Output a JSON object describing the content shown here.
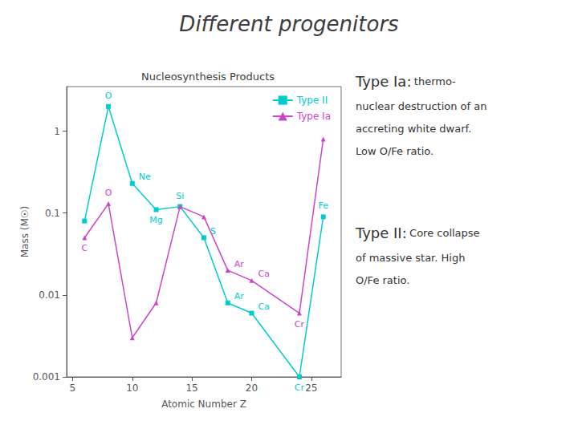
{
  "chart_data": {
    "type": "line",
    "title": "Different progenitors",
    "subtitle": "Nucleosynthesis Products",
    "x_label": "Atomic Number Z",
    "y_label": "Mass (M☉)",
    "log": "y",
    "grid": false,
    "legend": "upper right",
    "xlim": [
      4.5,
      27.5
    ],
    "xticks": [
      5,
      10,
      15,
      20,
      25
    ],
    "ylim": [
      0.001,
      3.5
    ],
    "yticks": [
      0.001,
      0.01,
      0.1,
      1
    ],
    "x": [
      6,
      8,
      10,
      12,
      14,
      16,
      18,
      20,
      24,
      26
    ],
    "series": [
      {
        "name": "Type II",
        "color": "#00cccc",
        "marker": "square",
        "values": [
          0.08,
          2.0,
          0.23,
          0.11,
          0.12,
          0.05,
          0.008,
          0.006,
          0.001,
          0.09
        ]
      },
      {
        "name": "Type Ia",
        "color": "#cc44cc",
        "marker": "triangle",
        "values": [
          0.05,
          0.13,
          0.003,
          0.008,
          0.12,
          0.09,
          0.02,
          0.015,
          0.006,
          0.8
        ]
      }
    ],
    "annotations": [
      {
        "text": "O",
        "series": "Type II",
        "x": 8,
        "y": 2.0
      },
      {
        "text": "Ne",
        "series": "Type II",
        "x": 10,
        "y": 0.23
      },
      {
        "text": "Mg",
        "series": "Type II",
        "x": 12,
        "y": 0.11
      },
      {
        "text": "Si",
        "series": "Type II",
        "x": 14,
        "y": 0.12
      },
      {
        "text": "S",
        "series": "Type II",
        "x": 16,
        "y": 0.05
      },
      {
        "text": "Ar",
        "series": "Type II",
        "x": 18,
        "y": 0.008
      },
      {
        "text": "Ca",
        "series": "Type II",
        "x": 20,
        "y": 0.006
      },
      {
        "text": "Cr",
        "series": "Type II",
        "x": 24,
        "y": 0.001
      },
      {
        "text": "Fe",
        "series": "Type II",
        "x": 26,
        "y": 0.09
      },
      {
        "text": "C",
        "series": "Type Ia",
        "x": 6,
        "y": 0.05
      },
      {
        "text": "O",
        "series": "Type Ia",
        "x": 8,
        "y": 0.13
      },
      {
        "text": "Ar",
        "series": "Type Ia",
        "x": 18,
        "y": 0.02
      },
      {
        "text": "Ca",
        "series": "Type Ia",
        "x": 20,
        "y": 0.015
      },
      {
        "text": "Cr",
        "series": "Type Ia",
        "x": 24,
        "y": 0.006
      }
    ],
    "notes": [
      {
        "heading": "Type Ia:",
        "lines": [
          "thermo-",
          "nuclear destruction of an",
          "accreting white dwarf.",
          "Low O/Fe ratio."
        ]
      },
      {
        "heading": "Type II:",
        "lines": [
          "Core collapse",
          "of massive star. High",
          "O/Fe ratio."
        ]
      }
    ]
  }
}
